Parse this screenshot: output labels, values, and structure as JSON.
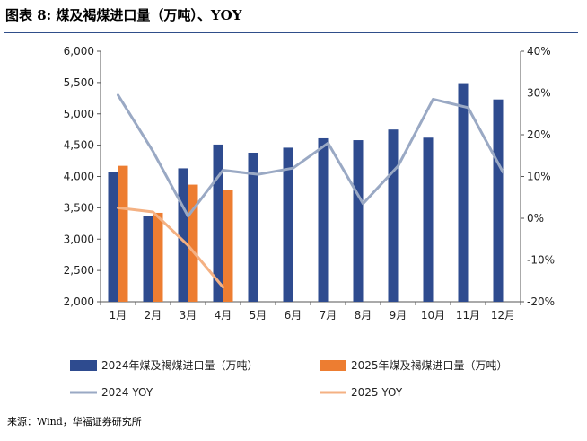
{
  "header": {
    "title": "图表 8:  煤及褐煤进口量（万吨）、YOY"
  },
  "footer": {
    "source": "来源：Wind，华福证券研究所"
  },
  "colors": {
    "bar2024": "#2e4b8f",
    "bar2025": "#ed7d31",
    "line2024": "#9aa9c4",
    "line2025": "#f4b183"
  },
  "chart_data": {
    "type": "bar",
    "categories": [
      "1月",
      "2月",
      "3月",
      "4月",
      "5月",
      "6月",
      "7月",
      "8月",
      "9月",
      "10月",
      "11月",
      "12月"
    ],
    "series": [
      {
        "name": "2024年煤及褐煤进口量（万吨）",
        "kind": "bar",
        "axis": "left",
        "values": [
          4070,
          3370,
          4130,
          4510,
          4380,
          4460,
          4610,
          4580,
          4750,
          4620,
          5490,
          5230
        ]
      },
      {
        "name": "2025年煤及褐煤进口量（万吨）",
        "kind": "bar",
        "axis": "left",
        "values": [
          4170,
          3420,
          3870,
          3780,
          null,
          null,
          null,
          null,
          null,
          null,
          null,
          null
        ]
      },
      {
        "name": "2024 YOY",
        "kind": "line",
        "axis": "right",
        "values": [
          29.5,
          16,
          0.5,
          11.5,
          10.5,
          12,
          18,
          3.5,
          12.5,
          28.5,
          26.5,
          11
        ]
      },
      {
        "name": "2025 YOY",
        "kind": "line",
        "axis": "right",
        "values": [
          2.5,
          1.5,
          -6.5,
          -16.5,
          null,
          null,
          null,
          null,
          null,
          null,
          null,
          null
        ]
      }
    ],
    "yaxis_left": {
      "min": 2000,
      "max": 6000,
      "step": 500,
      "ticks": [
        "2,000",
        "2,500",
        "3,000",
        "3,500",
        "4,000",
        "4,500",
        "5,000",
        "5,500",
        "6,000"
      ]
    },
    "yaxis_right": {
      "min": -20,
      "max": 40,
      "step": 10,
      "ticks": [
        "-20%",
        "-10%",
        "0%",
        "10%",
        "20%",
        "30%",
        "40%"
      ]
    },
    "legend": {
      "placement": "bottom"
    }
  }
}
